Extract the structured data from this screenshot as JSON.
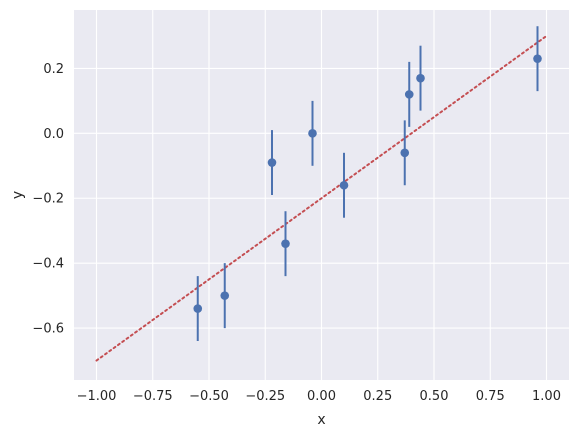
{
  "chart_data": {
    "type": "scatter",
    "title": "",
    "xlabel": "x",
    "ylabel": "y",
    "xlim": [
      -1.1,
      1.1
    ],
    "ylim": [
      -0.76,
      0.38
    ],
    "grid": true,
    "x_ticks": [
      -1.0,
      -0.75,
      -0.5,
      -0.25,
      0.0,
      0.25,
      0.5,
      0.75,
      1.0
    ],
    "x_tick_labels": [
      "−1.00",
      "−0.75",
      "−0.50",
      "−0.25",
      "0.00",
      "0.25",
      "0.50",
      "0.75",
      "1.00"
    ],
    "y_ticks": [
      -0.6,
      -0.4,
      -0.2,
      0.0,
      0.2
    ],
    "y_tick_labels": [
      "−0.6",
      "−0.4",
      "−0.2",
      "0.0",
      "0.2"
    ],
    "series": [
      {
        "kind": "errorbar",
        "color": "#4c72b0",
        "points": [
          {
            "x": -0.55,
            "y": -0.54,
            "yerr": 0.1
          },
          {
            "x": -0.43,
            "y": -0.5,
            "yerr": 0.1
          },
          {
            "x": -0.22,
            "y": -0.09,
            "yerr": 0.1
          },
          {
            "x": -0.16,
            "y": -0.34,
            "yerr": 0.1
          },
          {
            "x": -0.04,
            "y": 0.0,
            "yerr": 0.1
          },
          {
            "x": 0.1,
            "y": -0.16,
            "yerr": 0.1
          },
          {
            "x": 0.37,
            "y": -0.06,
            "yerr": 0.1
          },
          {
            "x": 0.39,
            "y": 0.12,
            "yerr": 0.1
          },
          {
            "x": 0.44,
            "y": 0.17,
            "yerr": 0.1
          },
          {
            "x": 0.96,
            "y": 0.23,
            "yerr": 0.1
          }
        ]
      },
      {
        "kind": "line",
        "style": "dotted",
        "color": "#c44e52",
        "points": [
          {
            "x": -1.0,
            "y": -0.7
          },
          {
            "x": 1.0,
            "y": 0.3
          }
        ]
      }
    ],
    "background_color": "#eaeaf2",
    "grid_color": "#ffffff"
  }
}
